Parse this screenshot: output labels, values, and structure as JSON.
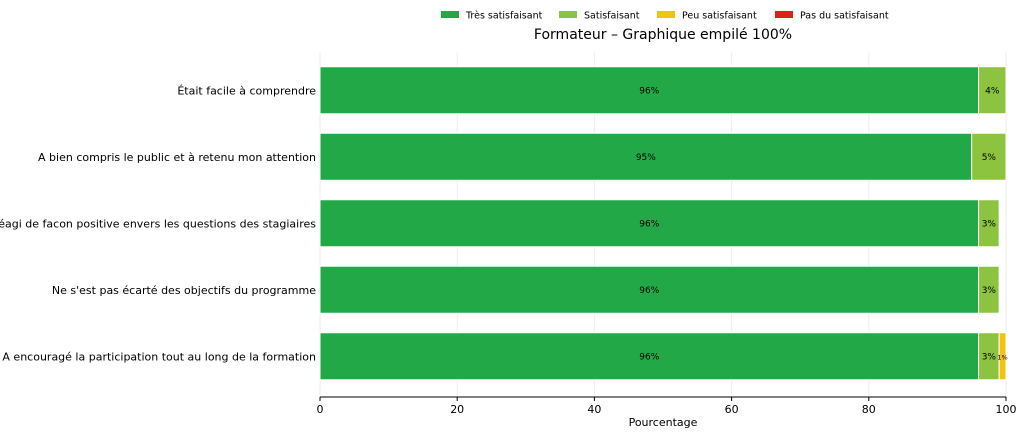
{
  "chart_data": {
    "type": "bar",
    "orientation": "horizontal",
    "stacked": true,
    "title": "Formateur – Graphique empilé 100%",
    "xlabel": "Pourcentage",
    "ylabel": "",
    "xlim": [
      0,
      100
    ],
    "x_ticks": [
      0,
      20,
      40,
      60,
      80,
      100
    ],
    "grid": true,
    "legend_position": "top-center",
    "categories": [
      "Était facile à comprendre",
      "A bien compris le public et à retenu mon attention",
      "A réagi de facon positive envers les questions des stagiaires",
      "Ne s'est pas écarté des objectifs du programme",
      "A encouragé la participation tout au long de la formation"
    ],
    "series": [
      {
        "name": "Très satisfaisant",
        "color": "#22a846",
        "values": [
          96,
          95,
          96,
          96,
          96
        ],
        "labels": [
          "96%",
          "95%",
          "96%",
          "96%",
          "96%"
        ]
      },
      {
        "name": "Satisfaisant",
        "color": "#8dc43f",
        "values": [
          4,
          5,
          3,
          3,
          3
        ],
        "labels": [
          "4%",
          "5%",
          "3%",
          "3%",
          "3%"
        ]
      },
      {
        "name": "Peu satisfaisant",
        "color": "#f5c211",
        "values": [
          0,
          0,
          0,
          0,
          1
        ],
        "labels": [
          "",
          "",
          "",
          "",
          "1%"
        ]
      },
      {
        "name": "Pas du satisfaisant",
        "color": "#e0201b",
        "values": [
          0,
          0,
          0,
          0,
          0
        ],
        "labels": [
          "",
          "",
          "",
          "",
          ""
        ]
      }
    ]
  }
}
